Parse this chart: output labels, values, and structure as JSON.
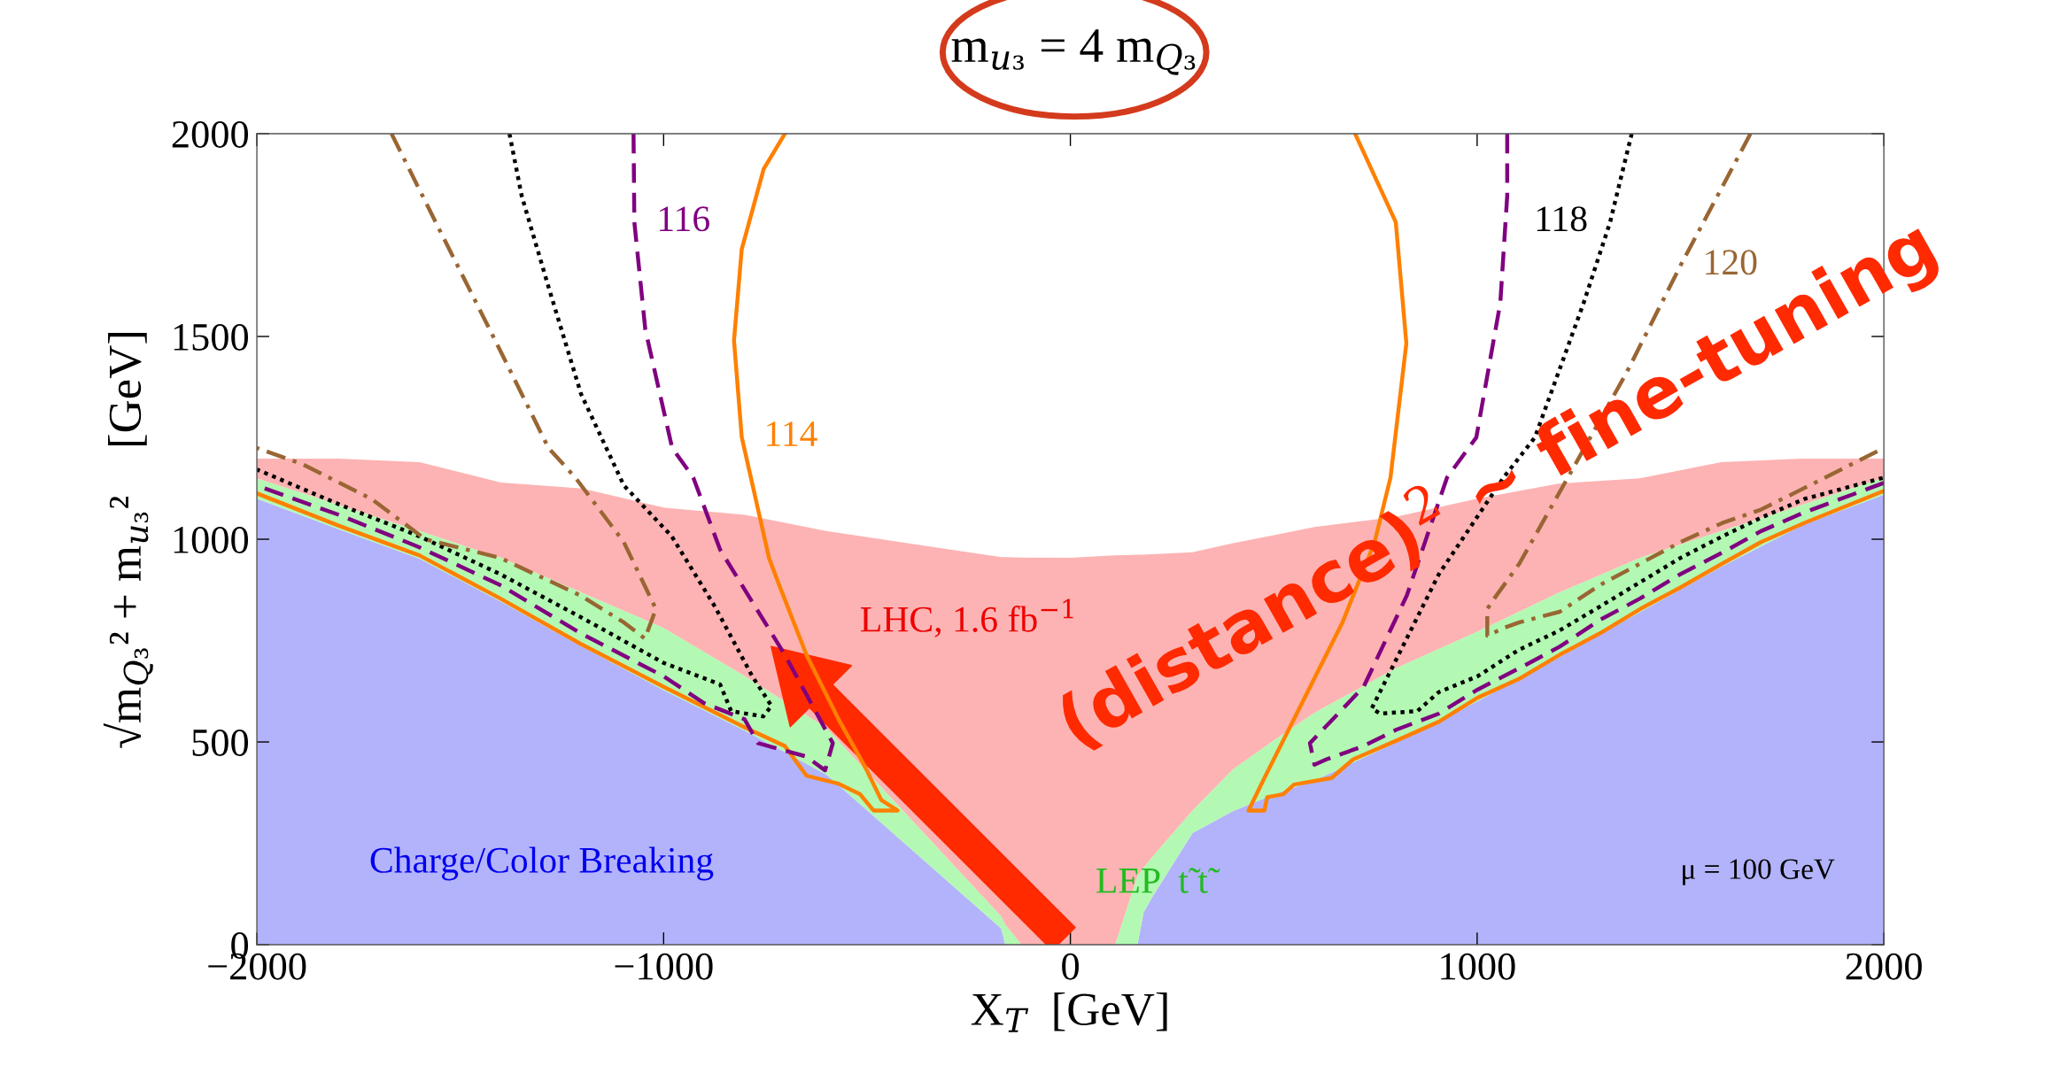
{
  "chart_data": {
    "type": "area",
    "title": "m$_{u₃}$ = 4 m$_{Q₃}$",
    "xlabel": "X$_{T}$  [GeV]",
    "ylabel": "√m$_{Q₃}$² + m$_{u₃}$²    [GeV]",
    "x": [
      -2000,
      -1800,
      -1600,
      -1400,
      -1200,
      -1000,
      -800,
      -600,
      -170,
      -160,
      -120,
      0,
      110,
      165,
      180,
      200,
      300,
      400,
      500,
      600,
      800,
      1000,
      1200,
      1400,
      1600,
      1800,
      2000
    ],
    "stacked": true,
    "xlim": [
      -2000,
      2000
    ],
    "ylim": [
      0,
      2000
    ],
    "xticks": [
      {
        "value": -2000,
        "label": "−2000"
      },
      {
        "value": -1000,
        "label": "−1000"
      },
      0,
      1000,
      2000
    ],
    "yticks": [
      0,
      500,
      1000,
      1500,
      2000
    ],
    "grid": false,
    "legend": false,
    "series": [
      {
        "color": "#b3b3fb",
        "values": [
          1100,
          1025,
          952,
          846,
          735,
          628,
          528,
          420,
          40,
          0,
          0,
          0,
          0,
          0,
          80,
          115,
          275,
          330,
          370,
          405,
          498,
          600,
          708,
          820,
          932,
          1035,
          1110
        ]
      },
      {
        "color": "#b3f9b3",
        "values": [
          50,
          60,
          68,
          108,
          133,
          153,
          134,
          115,
          30,
          50,
          0,
          0,
          0,
          170,
          110,
          100,
          56,
          103,
          134,
          167,
          184,
          172,
          160,
          134,
          88,
          50,
          42
        ]
      },
      {
        "color": "#fdb3b3",
        "values": [
          49,
          114,
          170,
          186,
          257,
          297,
          398,
          485,
          886,
          906,
          955,
          954,
          960,
          792,
          772,
          748,
          637,
          557,
          506,
          458,
          373,
          328,
          269,
          196,
          170,
          114,
          47
        ]
      },
      {
        "type": "line",
        "name": "114",
        "color": "#ff8000",
        "line_style": "solid",
        "x": [
          -702,
          -754,
          -808,
          -827,
          -808,
          -741,
          -716,
          -649,
          -570,
          -504,
          -465,
          -425,
          -484,
          -517,
          -570,
          -649,
          -702,
          -801,
          -1000,
          -1204,
          -1402,
          -1600,
          -1798,
          -2000
        ],
        "values": [
          2000,
          1913,
          1715,
          1490,
          1252,
          954,
          887,
          715,
          556,
          437,
          357,
          331,
          331,
          371,
          397,
          417,
          490,
          536,
          636,
          742,
          854,
          960,
          1033,
          1113
        ]
      },
      {
        "type": "line",
        "color": "#ff8000",
        "line_style": "solid",
        "x": [
          700,
          800,
          826,
          787,
          748,
          669,
          563,
          477,
          438,
          477,
          484,
          523,
          550,
          642,
          695,
          801,
          906,
          1001,
          1104,
          1203,
          1302,
          1401,
          1500,
          1603,
          1698,
          1804,
          2000
        ],
        "values": [
          2000,
          1782,
          1483,
          1152,
          993,
          795,
          583,
          411,
          331,
          331,
          364,
          371,
          395,
          411,
          457,
          503,
          550,
          609,
          656,
          715,
          768,
          828,
          881,
          940,
          993,
          1040,
          1119
        ]
      },
      {
        "type": "line",
        "name": "116",
        "color": "#800080",
        "line_style": "dashed",
        "x": [
          -1074,
          -1072,
          -1045,
          -979,
          -927,
          -861,
          -702,
          -584,
          -603,
          -649,
          -768,
          -801,
          -901,
          -1000,
          -1204,
          -1402,
          -1600,
          -1798,
          -2000
        ],
        "values": [
          2000,
          1782,
          1517,
          1225,
          1152,
          974,
          715,
          497,
          430,
          464,
          497,
          556,
          596,
          662,
          768,
          887,
          980,
          1060,
          1132
        ]
      },
      {
        "type": "line",
        "color": "#800080",
        "line_style": "dashed",
        "x": [
          1074,
          1074,
          1057,
          998,
          926,
          827,
          721,
          589,
          600,
          629,
          721,
          801,
          906,
          1001,
          1104,
          1203,
          1302,
          1401,
          1500,
          1603,
          1698,
          1804,
          2000
        ],
        "values": [
          2000,
          1847,
          1583,
          1251,
          1152,
          861,
          636,
          497,
          444,
          457,
          490,
          530,
          570,
          629,
          682,
          735,
          801,
          854,
          914,
          967,
          1020,
          1066,
          1139
        ]
      },
      {
        "type": "line",
        "color": "#000000",
        "line_style": "dotted",
        "x": [
          -1379,
          -1349,
          -1283,
          -1203,
          -1098,
          -980,
          -874,
          -782,
          -735,
          -755,
          -834,
          -861,
          -1000,
          -1204,
          -1402,
          -1600,
          -1798,
          -2000
        ],
        "values": [
          2000,
          1847,
          1622,
          1358,
          1133,
          1007,
          834,
          662,
          589,
          563,
          576,
          642,
          695,
          808,
          914,
          1007,
          1086,
          1172
        ]
      },
      {
        "type": "line",
        "name": "118",
        "color": "#000000",
        "line_style": "dotted",
        "x": [
          1380,
          1327,
          1262,
          1142,
          1065,
          906,
          774,
          741,
          761,
          853,
          906,
          1001,
          1104,
          1203,
          1302,
          1401,
          1500,
          1603,
          1698,
          1804,
          2000
        ],
        "values": [
          2000,
          1782,
          1583,
          1251,
          1152,
          914,
          649,
          583,
          570,
          576,
          623,
          662,
          728,
          775,
          834,
          894,
          954,
          1007,
          1053,
          1099,
          1152
        ]
      },
      {
        "type": "line",
        "color": "#996633",
        "line_style": "dashdot",
        "x": [
          -1669,
          -1547,
          -1414,
          -1283,
          -1217,
          -1098,
          -1019,
          -1046,
          -1098,
          -1204,
          -1402,
          -1586,
          -1719,
          -1890,
          -2000
        ],
        "values": [
          2000,
          1755,
          1490,
          1225,
          1152,
          993,
          828,
          755,
          795,
          861,
          954,
          1000,
          1100,
          1186,
          1225
        ]
      },
      {
        "type": "line",
        "name": "120",
        "color": "#996633",
        "line_style": "dashdot",
        "x": [
          1672,
          1500,
          1367,
          1223,
          1104,
          1038,
          1025,
          1025,
          1065,
          1104,
          1203,
          1302,
          1401,
          1500,
          1603,
          1698,
          1804,
          2000
        ],
        "values": [
          2000,
          1675,
          1410,
          1152,
          940,
          848,
          828,
          762,
          781,
          795,
          821,
          887,
          940,
          993,
          1040,
          1073,
          1126,
          1225
        ]
      }
    ],
    "annotations": [
      "Charge/Color Breaking",
      "LEP  t̃ t̃",
      "LHC, 1.6 fb$^{−1}$",
      "μ = 100 GeV",
      "(distance)$^{2}$ ~ fine-tuning"
    ]
  }
}
